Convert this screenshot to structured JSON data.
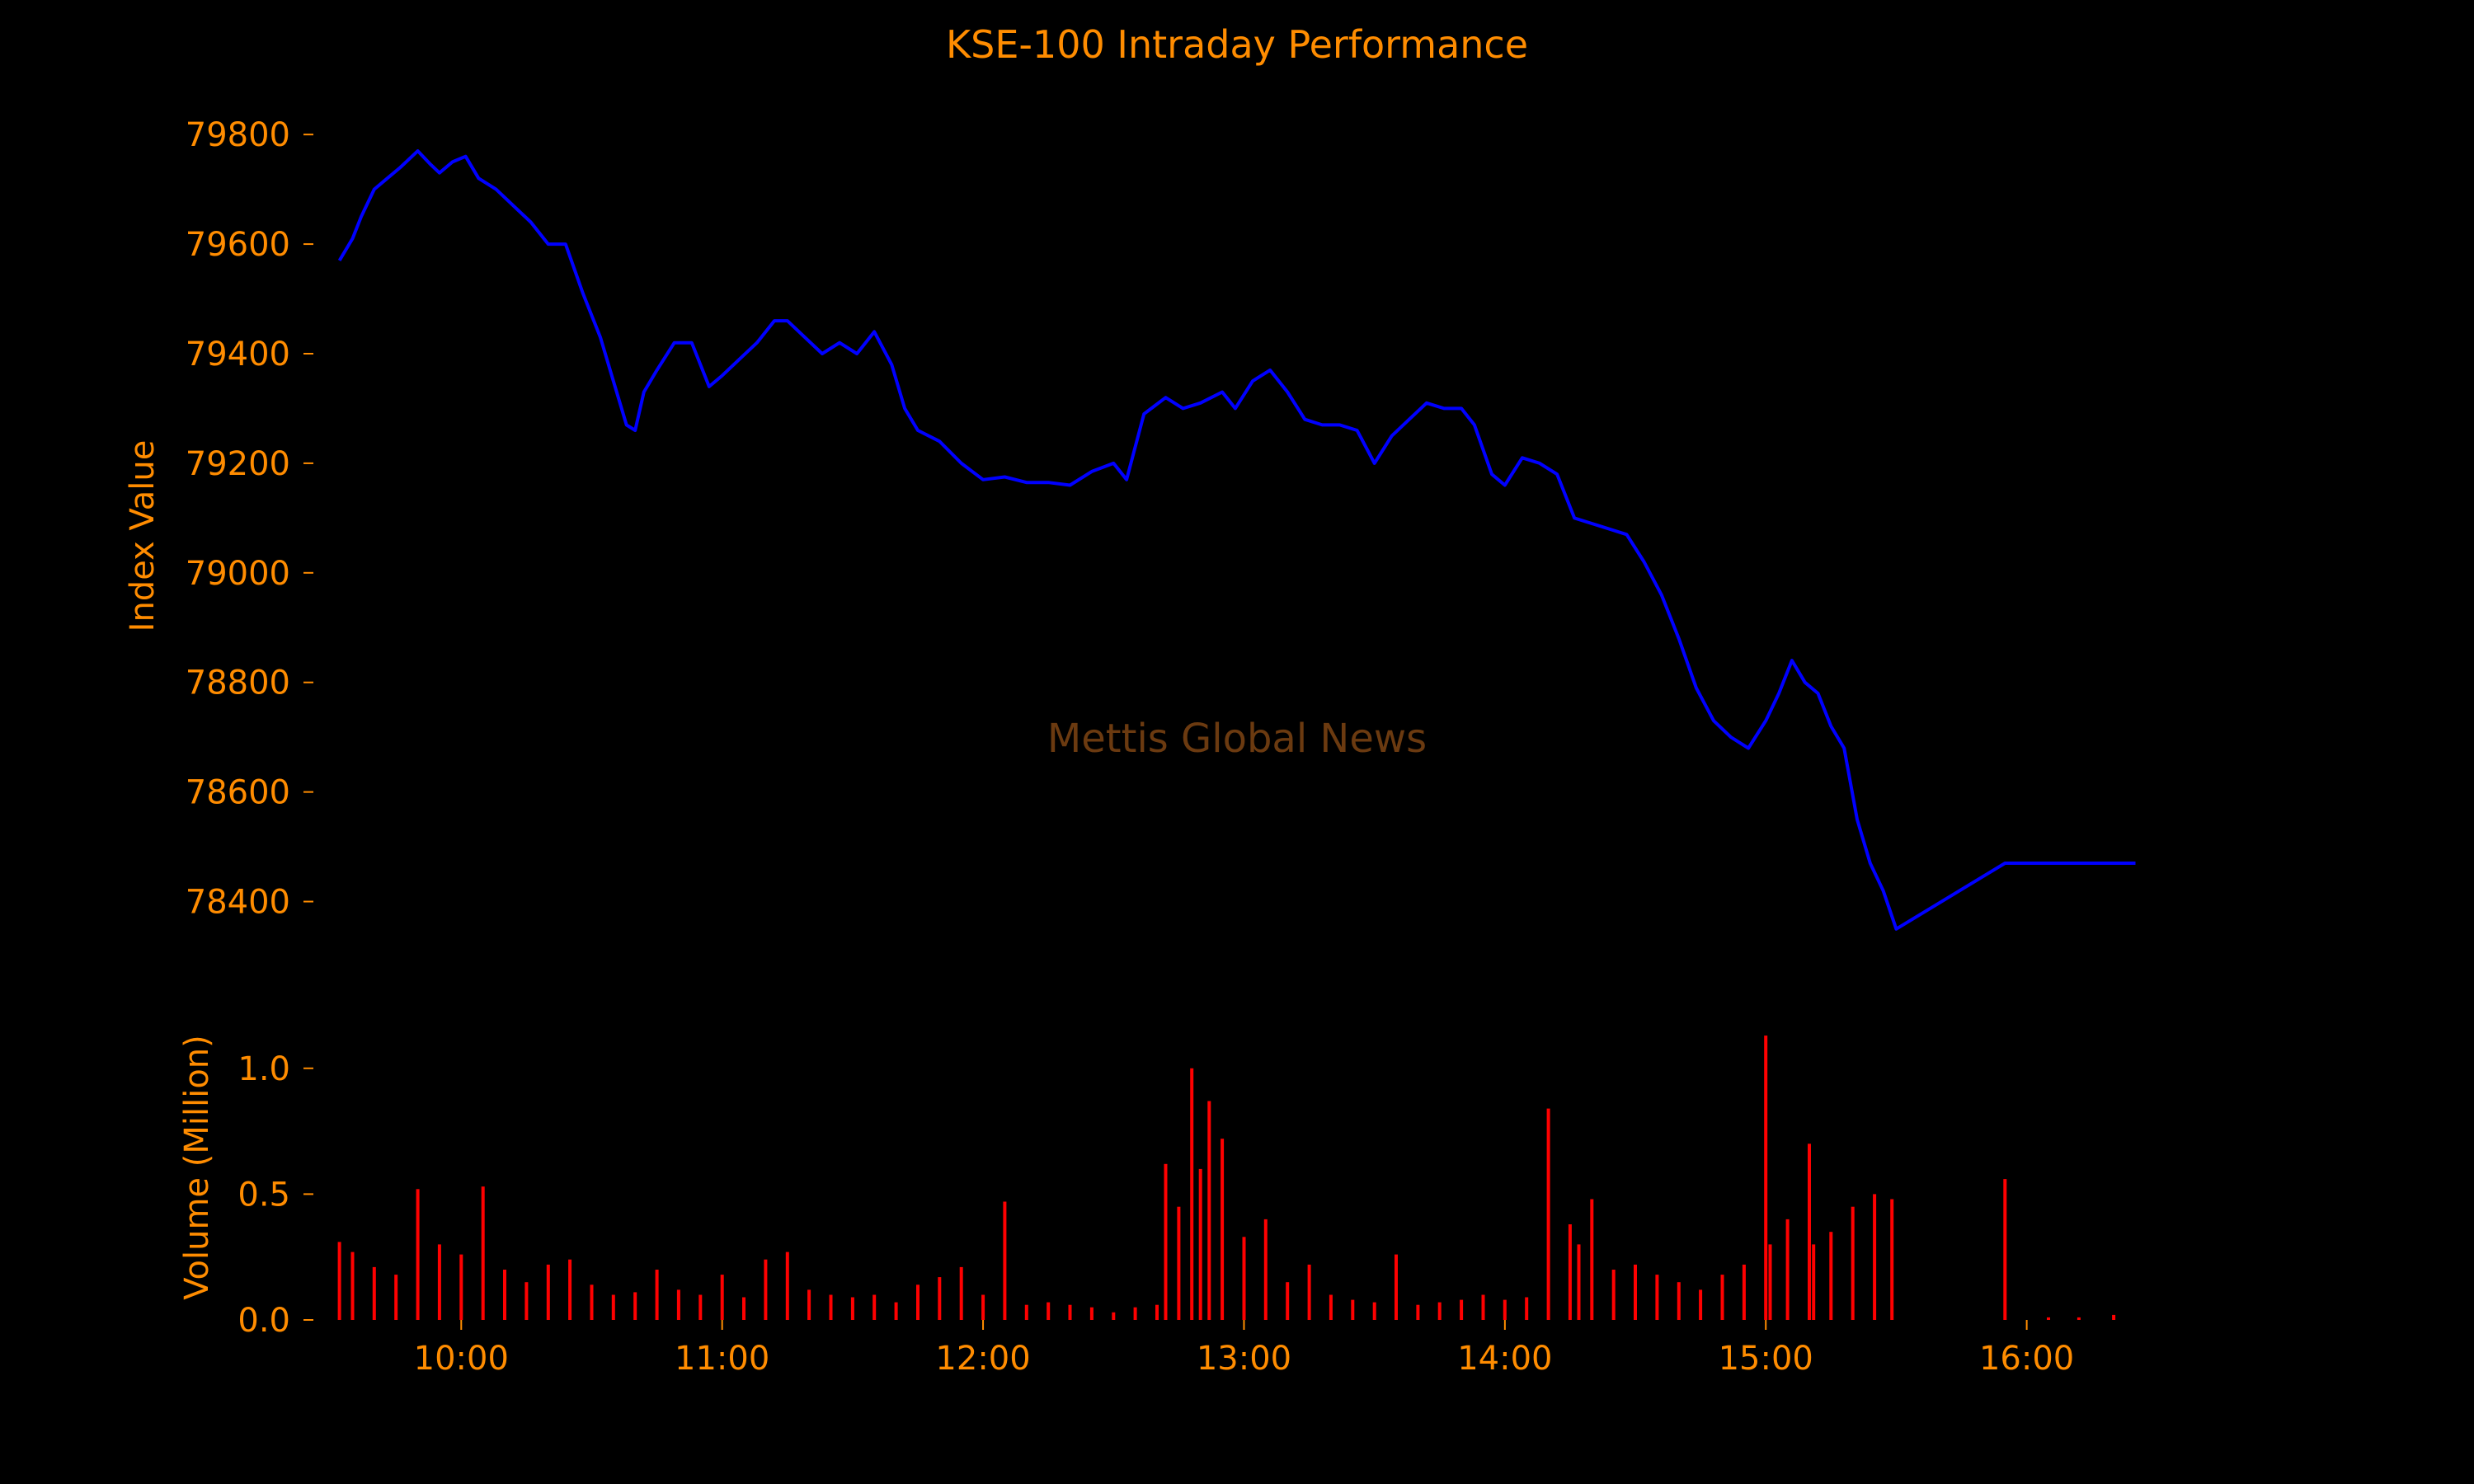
{
  "chart_data": [
    {
      "type": "line",
      "title": "KSE-100 Intraday Performance",
      "ylabel": "Index Value",
      "xlabel": "",
      "ylim": [
        78300,
        79880
      ],
      "xlim": [
        "09:26",
        "16:27"
      ],
      "grid": false,
      "yticks": [
        78400,
        78600,
        78800,
        79000,
        79200,
        79400,
        79600,
        79800
      ],
      "series": [
        {
          "color": "#0000ff",
          "x": [
            "09:32",
            "09:35",
            "09:37",
            "09:40",
            "09:43",
            "09:46",
            "09:50",
            "09:53",
            "09:55",
            "09:58",
            "10:01",
            "10:04",
            "10:08",
            "10:12",
            "10:16",
            "10:20",
            "10:24",
            "10:28",
            "10:32",
            "10:35",
            "10:38",
            "10:40",
            "10:42",
            "10:45",
            "10:49",
            "10:53",
            "10:57",
            "11:00",
            "11:04",
            "11:08",
            "11:12",
            "11:15",
            "11:19",
            "11:23",
            "11:27",
            "11:31",
            "11:35",
            "11:39",
            "11:42",
            "11:45",
            "11:50",
            "11:55",
            "12:00",
            "12:05",
            "12:10",
            "12:15",
            "12:20",
            "12:25",
            "12:30",
            "12:33",
            "12:37",
            "12:42",
            "12:46",
            "12:50",
            "12:55",
            "12:58",
            "13:02",
            "13:06",
            "13:10",
            "13:14",
            "13:18",
            "13:22",
            "13:26",
            "13:30",
            "13:34",
            "13:38",
            "13:42",
            "13:46",
            "13:50",
            "13:53",
            "13:57",
            "14:00",
            "14:04",
            "14:08",
            "14:12",
            "14:16",
            "14:20",
            "14:24",
            "14:28",
            "14:32",
            "14:36",
            "14:40",
            "14:44",
            "14:48",
            "14:52",
            "14:56",
            "15:00",
            "15:03",
            "15:06",
            "15:09",
            "15:12",
            "15:15",
            "15:18",
            "15:21",
            "15:24",
            "15:27",
            "15:30",
            "15:55",
            "16:00",
            "16:15",
            "16:25"
          ],
          "values": [
            79570,
            79610,
            79650,
            79700,
            79720,
            79740,
            79770,
            79745,
            79730,
            79750,
            79760,
            79720,
            79700,
            79670,
            79640,
            79600,
            79600,
            79510,
            79430,
            79350,
            79270,
            79260,
            79330,
            79370,
            79420,
            79420,
            79340,
            79360,
            79390,
            79420,
            79460,
            79460,
            79430,
            79400,
            79420,
            79400,
            79440,
            79380,
            79300,
            79260,
            79240,
            79200,
            79170,
            79175,
            79165,
            79165,
            79160,
            79185,
            79200,
            79170,
            79290,
            79320,
            79300,
            79310,
            79330,
            79300,
            79350,
            79370,
            79330,
            79280,
            79270,
            79270,
            79260,
            79200,
            79250,
            79280,
            79310,
            79300,
            79300,
            79270,
            79180,
            79160,
            79210,
            79200,
            79180,
            79100,
            79090,
            79080,
            79070,
            79020,
            78960,
            78880,
            78790,
            78730,
            78700,
            78680,
            78730,
            78780,
            78840,
            78800,
            78780,
            78720,
            78680,
            78550,
            78470,
            78420,
            78350,
            78470,
            78470,
            78470,
            78470
          ]
        }
      ]
    },
    {
      "type": "bar",
      "ylabel": "Volume (Million)",
      "xlabel": "",
      "ylim": [
        0,
        1.15
      ],
      "yticks": [
        "0.0",
        "0.5",
        "1.0"
      ],
      "xticks": [
        "10:00",
        "11:00",
        "12:00",
        "13:00",
        "14:00",
        "15:00",
        "16:00"
      ],
      "color": "#ff0000",
      "series": [
        {
          "x": [
            "09:32",
            "09:35",
            "09:40",
            "09:45",
            "09:50",
            "09:55",
            "10:00",
            "10:05",
            "10:10",
            "10:15",
            "10:20",
            "10:25",
            "10:30",
            "10:35",
            "10:40",
            "10:45",
            "10:50",
            "10:55",
            "11:00",
            "11:05",
            "11:10",
            "11:15",
            "11:20",
            "11:25",
            "11:30",
            "11:35",
            "11:40",
            "11:45",
            "11:50",
            "11:55",
            "12:00",
            "12:05",
            "12:10",
            "12:15",
            "12:20",
            "12:25",
            "12:30",
            "12:35",
            "12:40",
            "12:42",
            "12:45",
            "12:48",
            "12:50",
            "12:52",
            "12:55",
            "13:00",
            "13:05",
            "13:10",
            "13:15",
            "13:20",
            "13:25",
            "13:30",
            "13:35",
            "13:40",
            "13:45",
            "13:50",
            "13:55",
            "14:00",
            "14:05",
            "14:10",
            "14:15",
            "14:17",
            "14:20",
            "14:25",
            "14:30",
            "14:35",
            "14:40",
            "14:45",
            "14:50",
            "14:55",
            "15:00",
            "15:01",
            "15:05",
            "15:10",
            "15:11",
            "15:15",
            "15:20",
            "15:25",
            "15:29",
            "15:55",
            "16:05",
            "16:12",
            "16:20"
          ],
          "values": [
            0.31,
            0.27,
            0.21,
            0.18,
            0.52,
            0.3,
            0.26,
            0.53,
            0.2,
            0.15,
            0.22,
            0.24,
            0.14,
            0.1,
            0.11,
            0.2,
            0.12,
            0.1,
            0.18,
            0.09,
            0.24,
            0.27,
            0.12,
            0.1,
            0.09,
            0.1,
            0.07,
            0.14,
            0.17,
            0.21,
            0.1,
            0.47,
            0.06,
            0.07,
            0.06,
            0.05,
            0.03,
            0.05,
            0.06,
            0.62,
            0.45,
            1.0,
            0.6,
            0.87,
            0.72,
            0.33,
            0.4,
            0.15,
            0.22,
            0.1,
            0.08,
            0.07,
            0.26,
            0.06,
            0.07,
            0.08,
            0.1,
            0.08,
            0.09,
            0.84,
            0.38,
            0.3,
            0.48,
            0.2,
            0.22,
            0.18,
            0.15,
            0.12,
            0.18,
            0.22,
            1.13,
            0.3,
            0.4,
            0.7,
            0.3,
            0.35,
            0.45,
            0.5,
            0.48,
            0.56,
            0.01,
            0.01,
            0.02
          ]
        }
      ]
    }
  ],
  "watermark": "Mettis Global News",
  "colors": {
    "background": "#000000",
    "text": "#ff8c00",
    "line": "#0000ff",
    "bars": "#ff0000",
    "watermark": "#6b3a10"
  }
}
